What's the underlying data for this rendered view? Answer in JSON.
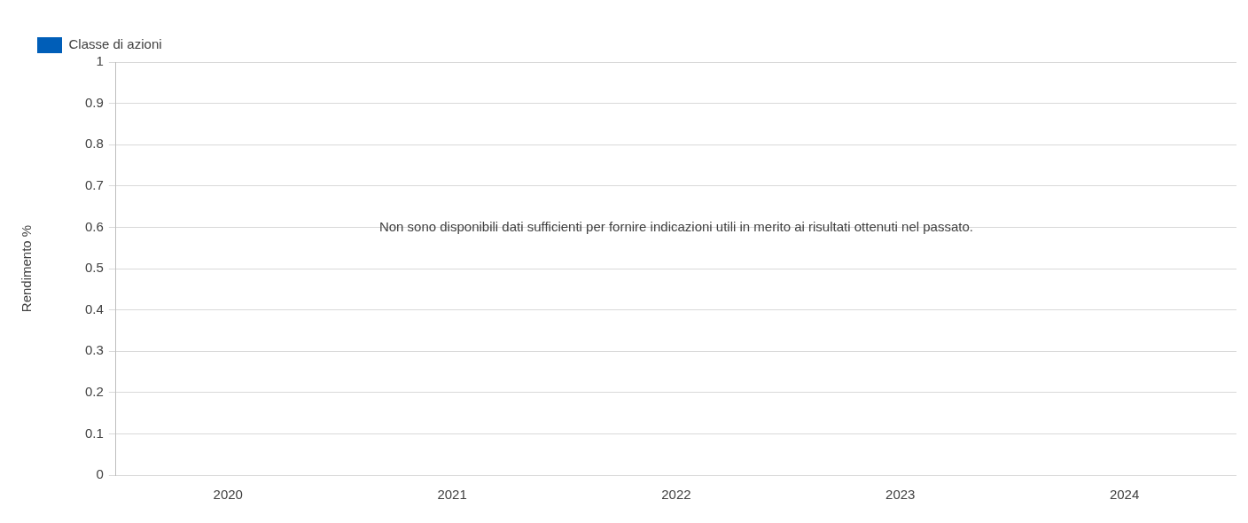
{
  "chart_data": {
    "type": "bar",
    "ylabel": "Rendimento %",
    "categories": [
      "2020",
      "2021",
      "2022",
      "2023",
      "2024"
    ],
    "series": [
      {
        "name": "Classe di azioni",
        "color": "#005eb8",
        "values": [
          null,
          null,
          null,
          null,
          null
        ]
      }
    ],
    "ylim": [
      0,
      1
    ],
    "yticks": [
      0,
      0.1,
      0.2,
      0.3,
      0.4,
      0.5,
      0.6,
      0.7,
      0.8,
      0.9,
      1
    ],
    "grid": "y",
    "legend": "top left",
    "annotations": [
      "Non sono disponibili dati sufficienti per fornire indicazioni utili in merito ai risultati ottenuti nel passato."
    ]
  }
}
